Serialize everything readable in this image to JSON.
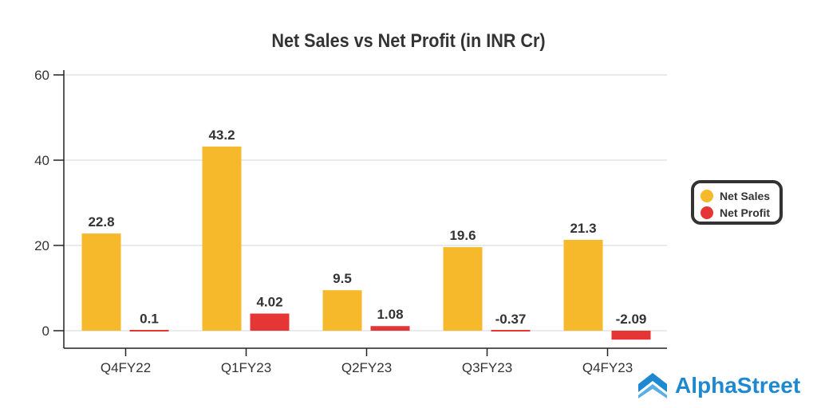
{
  "chart_data": {
    "type": "bar",
    "title": "Net Sales vs Net Profit (in INR Cr)",
    "categories": [
      "Q4FY22",
      "Q1FY23",
      "Q2FY23",
      "Q3FY23",
      "Q4FY23"
    ],
    "series": [
      {
        "name": "Net Sales",
        "color": "#f6b92b",
        "values": [
          22.8,
          43.2,
          9.5,
          19.6,
          21.3
        ],
        "labels": [
          "22.8",
          "43.2",
          "9.5",
          "19.6",
          "21.3"
        ]
      },
      {
        "name": "Net Profit",
        "color": "#e53535",
        "values": [
          0.1,
          4.02,
          1.08,
          -0.37,
          -2.09
        ],
        "labels": [
          "0.1",
          "4.02",
          "1.08",
          "-0.37",
          "-2.09"
        ]
      }
    ],
    "yticks": [
      "0",
      "20",
      "40",
      "60"
    ],
    "ylim": [
      -4,
      60
    ],
    "grid": true,
    "legend": "right"
  },
  "brand": {
    "name": "AlphaStreet",
    "color": "#1e88d0"
  }
}
